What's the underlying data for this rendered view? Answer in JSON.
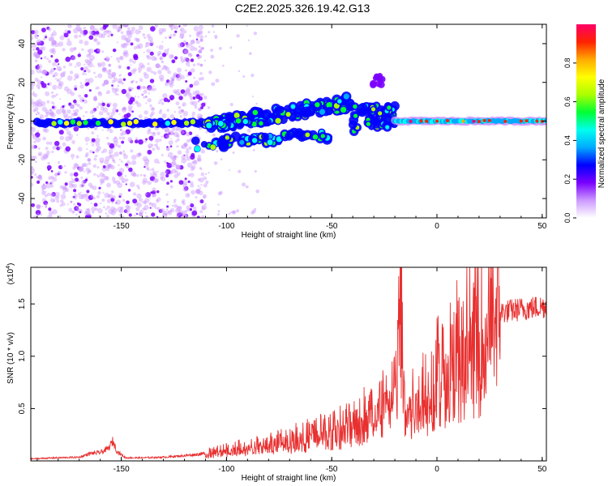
{
  "title": "C2E2.2025.326.19.42.G13",
  "chart_data": [
    {
      "type": "heatmap",
      "name": "spectrogram",
      "xlabel": "Height of straight line (km)",
      "ylabel": "Frequency (Hz)",
      "xlim": [
        -193,
        52
      ],
      "ylim": [
        -50,
        50
      ],
      "x_ticks": [
        -150,
        -100,
        -50,
        0,
        50
      ],
      "y_ticks": [
        -40,
        -20,
        0,
        20,
        40
      ],
      "colorbar": {
        "label": "Normalized spectral amplitude",
        "range": [
          0.0,
          1.0
        ],
        "ticks": [
          0.0,
          0.2,
          0.4,
          0.6,
          0.8
        ],
        "tick_labels": [
          "0.0",
          "0.2",
          "0.4",
          "0.6",
          "0.8"
        ],
        "colors": [
          "#ffffff",
          "#cc99ff",
          "#7a00ff",
          "#0000ff",
          "#00aaff",
          "#00ffee",
          "#00ff33",
          "#aaff00",
          "#ffff00",
          "#ffaa00",
          "#ff2200",
          "#ff0066"
        ]
      },
      "features": [
        {
          "name": "background-noise-columns",
          "x_range": [
            -193,
            -110
          ],
          "freq_range": [
            -50,
            50
          ],
          "amplitude": 0.15
        },
        {
          "name": "carrier-line-left",
          "x_range": [
            -190,
            -110
          ],
          "freq": -1,
          "amplitude": 0.55
        },
        {
          "name": "doppler-branch-upper",
          "x_start": -110,
          "x_end": -40,
          "freq_start": -3,
          "freq_end": 10,
          "amplitude": 0.45
        },
        {
          "name": "doppler-branch-lower",
          "x_start": -115,
          "x_end": -50,
          "freq_start": -12,
          "freq_end": -7,
          "amplitude": 0.35
        },
        {
          "name": "blob-near-minus30",
          "x": -29,
          "freq": 21,
          "amplitude": 0.15
        },
        {
          "name": "carrier-line-right",
          "x_range": [
            -20,
            52
          ],
          "freq": 0,
          "amplitude": 0.85
        }
      ]
    },
    {
      "type": "line",
      "name": "snr",
      "xlabel": "Height of straight line (km)",
      "ylabel": "SNR (10 * v/v)",
      "y_scale_label": "(x10",
      "y_scale_exp": "4",
      "y_scale_close": ")",
      "xlim": [
        -193,
        52
      ],
      "ylim": [
        0,
        18500
      ],
      "x_ticks": [
        -150,
        -100,
        -50,
        0,
        50
      ],
      "y_ticks": [
        5000,
        10000,
        15000
      ],
      "y_tick_labels": [
        "0.5",
        "1.0",
        "1.5"
      ],
      "color": "#e83030",
      "series": [
        {
          "name": "SNR",
          "x": [
            -193,
            -180,
            -170,
            -165,
            -160,
            -156,
            -154,
            -152,
            -148,
            -140,
            -130,
            -120,
            -110,
            -100,
            -90,
            -80,
            -70,
            -60,
            -50,
            -45,
            -40,
            -35,
            -30,
            -25,
            -22,
            -19,
            -18,
            -15,
            -10,
            -5,
            0,
            5,
            10,
            20,
            30,
            40,
            52
          ],
          "y": [
            200,
            300,
            350,
            700,
            800,
            1200,
            1900,
            900,
            300,
            300,
            350,
            500,
            700,
            1200,
            1400,
            1700,
            2200,
            2700,
            3200,
            3500,
            4000,
            4800,
            5200,
            6500,
            7200,
            8000,
            18500,
            6000,
            6500,
            7500,
            9000,
            10800,
            12000,
            13500,
            14200,
            14500,
            14800
          ]
        }
      ]
    }
  ]
}
